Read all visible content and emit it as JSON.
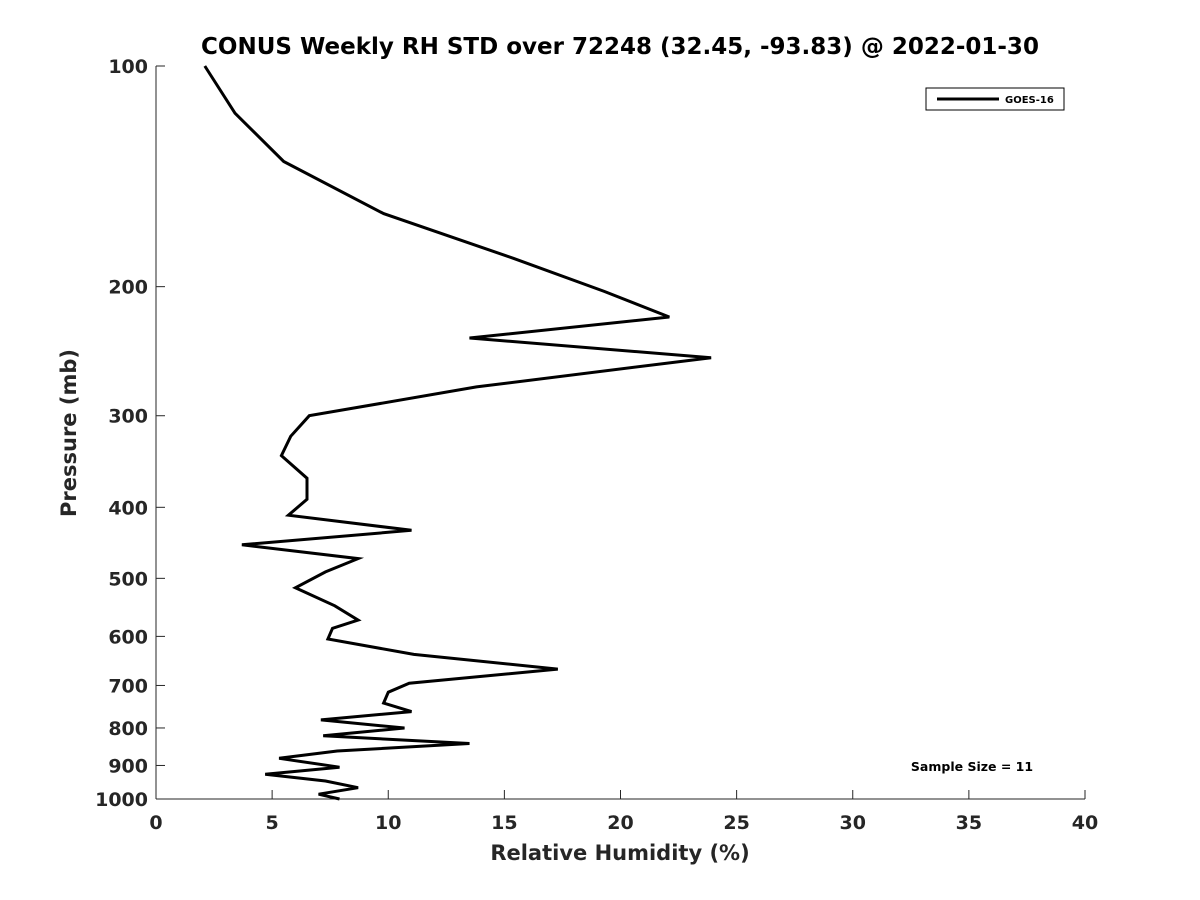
{
  "chart_data": {
    "type": "line",
    "title": "CONUS Weekly RH STD over 72248 (32.45, -93.83) @ 2022-01-30",
    "xlabel": "Relative Humidity (%)",
    "ylabel": "Pressure (mb)",
    "xlim": [
      0,
      40
    ],
    "ylim": [
      100,
      1000
    ],
    "yscale": "log",
    "y_reversed": true,
    "x_ticks": [
      0,
      5,
      10,
      15,
      20,
      25,
      30,
      35,
      40
    ],
    "y_ticks": [
      100,
      200,
      300,
      400,
      500,
      600,
      700,
      800,
      900,
      1000
    ],
    "grid": false,
    "legend": {
      "placement": "top-right",
      "entries": [
        "GOES-16"
      ]
    },
    "annotation": "Sample Size = 11",
    "series": [
      {
        "name": "GOES-16",
        "color": "#000000",
        "points": [
          [
            2.1,
            100
          ],
          [
            3.4,
            116
          ],
          [
            5.5,
            135
          ],
          [
            9.8,
            159
          ],
          [
            15.4,
            183
          ],
          [
            19.3,
            203
          ],
          [
            22.1,
            220
          ],
          [
            13.5,
            235
          ],
          [
            23.9,
            250
          ],
          [
            13.8,
            274
          ],
          [
            6.6,
            300
          ],
          [
            5.8,
            320
          ],
          [
            5.4,
            340
          ],
          [
            6.5,
            365
          ],
          [
            6.5,
            390
          ],
          [
            5.7,
            410
          ],
          [
            11.0,
            430
          ],
          [
            3.7,
            450
          ],
          [
            8.7,
            470
          ],
          [
            7.3,
            490
          ],
          [
            6.0,
            515
          ],
          [
            7.7,
            545
          ],
          [
            8.7,
            570
          ],
          [
            7.6,
            585
          ],
          [
            7.4,
            605
          ],
          [
            11.1,
            635
          ],
          [
            17.3,
            665
          ],
          [
            10.9,
            695
          ],
          [
            10.0,
            715
          ],
          [
            9.8,
            740
          ],
          [
            11.0,
            760
          ],
          [
            7.1,
            780
          ],
          [
            10.7,
            800
          ],
          [
            7.2,
            820
          ],
          [
            13.5,
            840
          ],
          [
            7.8,
            860
          ],
          [
            5.3,
            880
          ],
          [
            7.9,
            905
          ],
          [
            4.7,
            925
          ],
          [
            7.3,
            945
          ],
          [
            8.7,
            965
          ],
          [
            7.0,
            985
          ],
          [
            7.9,
            1000
          ]
        ]
      }
    ]
  }
}
